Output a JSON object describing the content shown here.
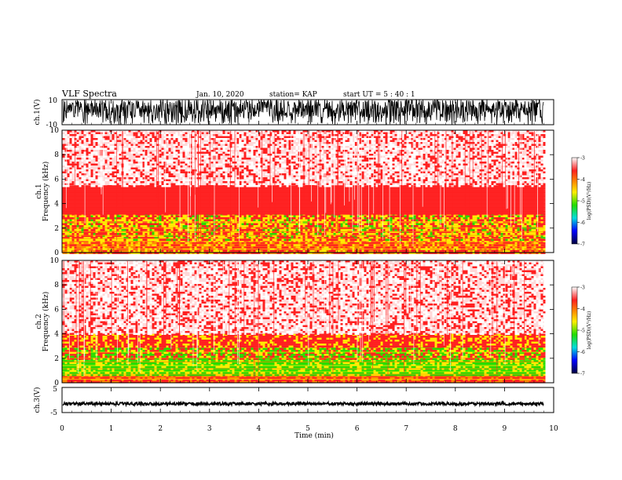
{
  "header": {
    "title": "VLF Spectra",
    "date": "Jan. 10, 2020",
    "station": "station= KAP",
    "start": "start  UT =   5 : 40 : 1"
  },
  "chart_data": [
    {
      "type": "line",
      "panel": "ch1-waveform",
      "ylabel": "ch.1(V)",
      "ylim": [
        -10,
        10
      ],
      "yticks": [
        "10",
        "-10"
      ],
      "xlim": [
        0,
        10
      ],
      "signal": "broadband noise filling most of the range, amplitude mostly between -4 and 10 V with dips to -10 V",
      "color": "#000000"
    },
    {
      "type": "heatmap",
      "panel": "ch1-spectrogram",
      "ylabel": "ch.1\nFrequency (kHz)",
      "ylim": [
        0,
        10
      ],
      "yticks": [
        "0",
        "2",
        "4",
        "6",
        "8",
        "10"
      ],
      "xlim": [
        0,
        10
      ],
      "data_end_min": 9.8,
      "bands_khz": [
        {
          "from": 0,
          "to": 1.0,
          "level": "red with orange/yellow lines"
        },
        {
          "from": 1.0,
          "to": 3.2,
          "level": "yellow and red, scattered green"
        },
        {
          "from": 3.2,
          "to": 5.5,
          "level": "red"
        },
        {
          "from": 5.5,
          "to": 10,
          "level": "sparse red on white"
        }
      ],
      "colorbar": {
        "label": "log(PSD)(V²/Hz)",
        "ticks": [
          "-3",
          "-4",
          "-5",
          "-6",
          "-7"
        ],
        "range": [
          -7,
          -3
        ]
      }
    },
    {
      "type": "heatmap",
      "panel": "ch2-spectrogram",
      "ylabel": "ch.2\nFrequency (kHz)",
      "ylim": [
        0,
        10
      ],
      "yticks": [
        "0",
        "2",
        "4",
        "6",
        "8",
        "10"
      ],
      "xlim": [
        0,
        10
      ],
      "data_end_min": 9.8,
      "bands_khz": [
        {
          "from": 0,
          "to": 0.6,
          "level": "orange/red lines"
        },
        {
          "from": 0.6,
          "to": 2.0,
          "level": "green and yellow"
        },
        {
          "from": 2.0,
          "to": 3.0,
          "level": "green, yellow and red"
        },
        {
          "from": 3.0,
          "to": 4.0,
          "level": "red with yellow"
        },
        {
          "from": 4.0,
          "to": 10,
          "level": "sparse red on white"
        }
      ],
      "colorbar": {
        "label": "log(PSD)(V²/Hz)",
        "ticks": [
          "-3",
          "-4",
          "-5",
          "-6",
          "-7"
        ],
        "range": [
          -7,
          -3
        ]
      }
    },
    {
      "type": "line",
      "panel": "ch3-waveform",
      "ylabel": "ch.3(V)",
      "ylim": [
        -5,
        5
      ],
      "yticks": [
        "5",
        "-5"
      ],
      "xlim": [
        0,
        10
      ],
      "signal": "narrow band centered near -1.5 V, thickness about 0.6 V",
      "center_v": -1.5,
      "spread_v": 0.6,
      "color": "#000000"
    }
  ],
  "xaxis": {
    "label": "Time (min)",
    "ticks": [
      "0",
      "1",
      "2",
      "3",
      "4",
      "5",
      "6",
      "7",
      "8",
      "9",
      "10"
    ]
  },
  "colors": {
    "white": "#ffffff",
    "red": "#ff2020",
    "orange": "#ff8c00",
    "yellow": "#ffee00",
    "green": "#22dd00",
    "cyan": "#00dddd",
    "blue": "#0000ff",
    "black": "#000000"
  }
}
